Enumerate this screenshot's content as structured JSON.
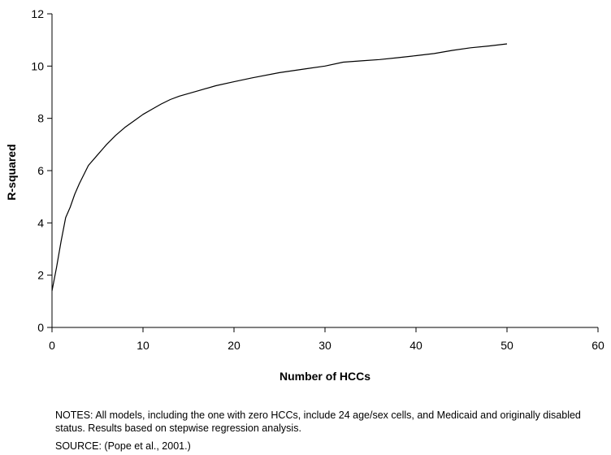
{
  "chart_data": {
    "type": "line",
    "title": "",
    "xlabel": "Number of HCCs",
    "ylabel": "R-squared",
    "xlim": [
      0,
      60
    ],
    "ylim": [
      0,
      12
    ],
    "x_ticks": [
      0,
      10,
      20,
      30,
      40,
      50,
      60
    ],
    "y_ticks": [
      0,
      2,
      4,
      6,
      8,
      10,
      12
    ],
    "grid": false,
    "legend": "none",
    "line_color": "#000000",
    "series": [
      {
        "x": [
          0,
          0.5,
          1,
          1.5,
          2,
          2.5,
          3,
          4,
          5,
          6,
          7,
          8,
          9,
          10,
          11,
          12,
          13,
          14,
          16,
          18,
          20,
          22,
          25,
          28,
          30,
          32,
          34,
          36,
          38,
          40,
          42,
          44,
          46,
          48,
          50
        ],
        "y": [
          1.4,
          2.3,
          3.3,
          4.2,
          4.6,
          5.1,
          5.5,
          6.2,
          6.6,
          7.0,
          7.35,
          7.65,
          7.9,
          8.15,
          8.35,
          8.55,
          8.72,
          8.85,
          9.05,
          9.25,
          9.4,
          9.55,
          9.75,
          9.9,
          10.0,
          10.15,
          10.2,
          10.25,
          10.32,
          10.4,
          10.48,
          10.6,
          10.7,
          10.77,
          10.85
        ]
      }
    ]
  },
  "notes": "NOTES: All models, including the one with zero HCCs, include 24 age/sex cells, and Medicaid and originally disabled status.  Results based on stepwise regression analysis.",
  "source": "SOURCE: (Pope et al., 2001.)"
}
